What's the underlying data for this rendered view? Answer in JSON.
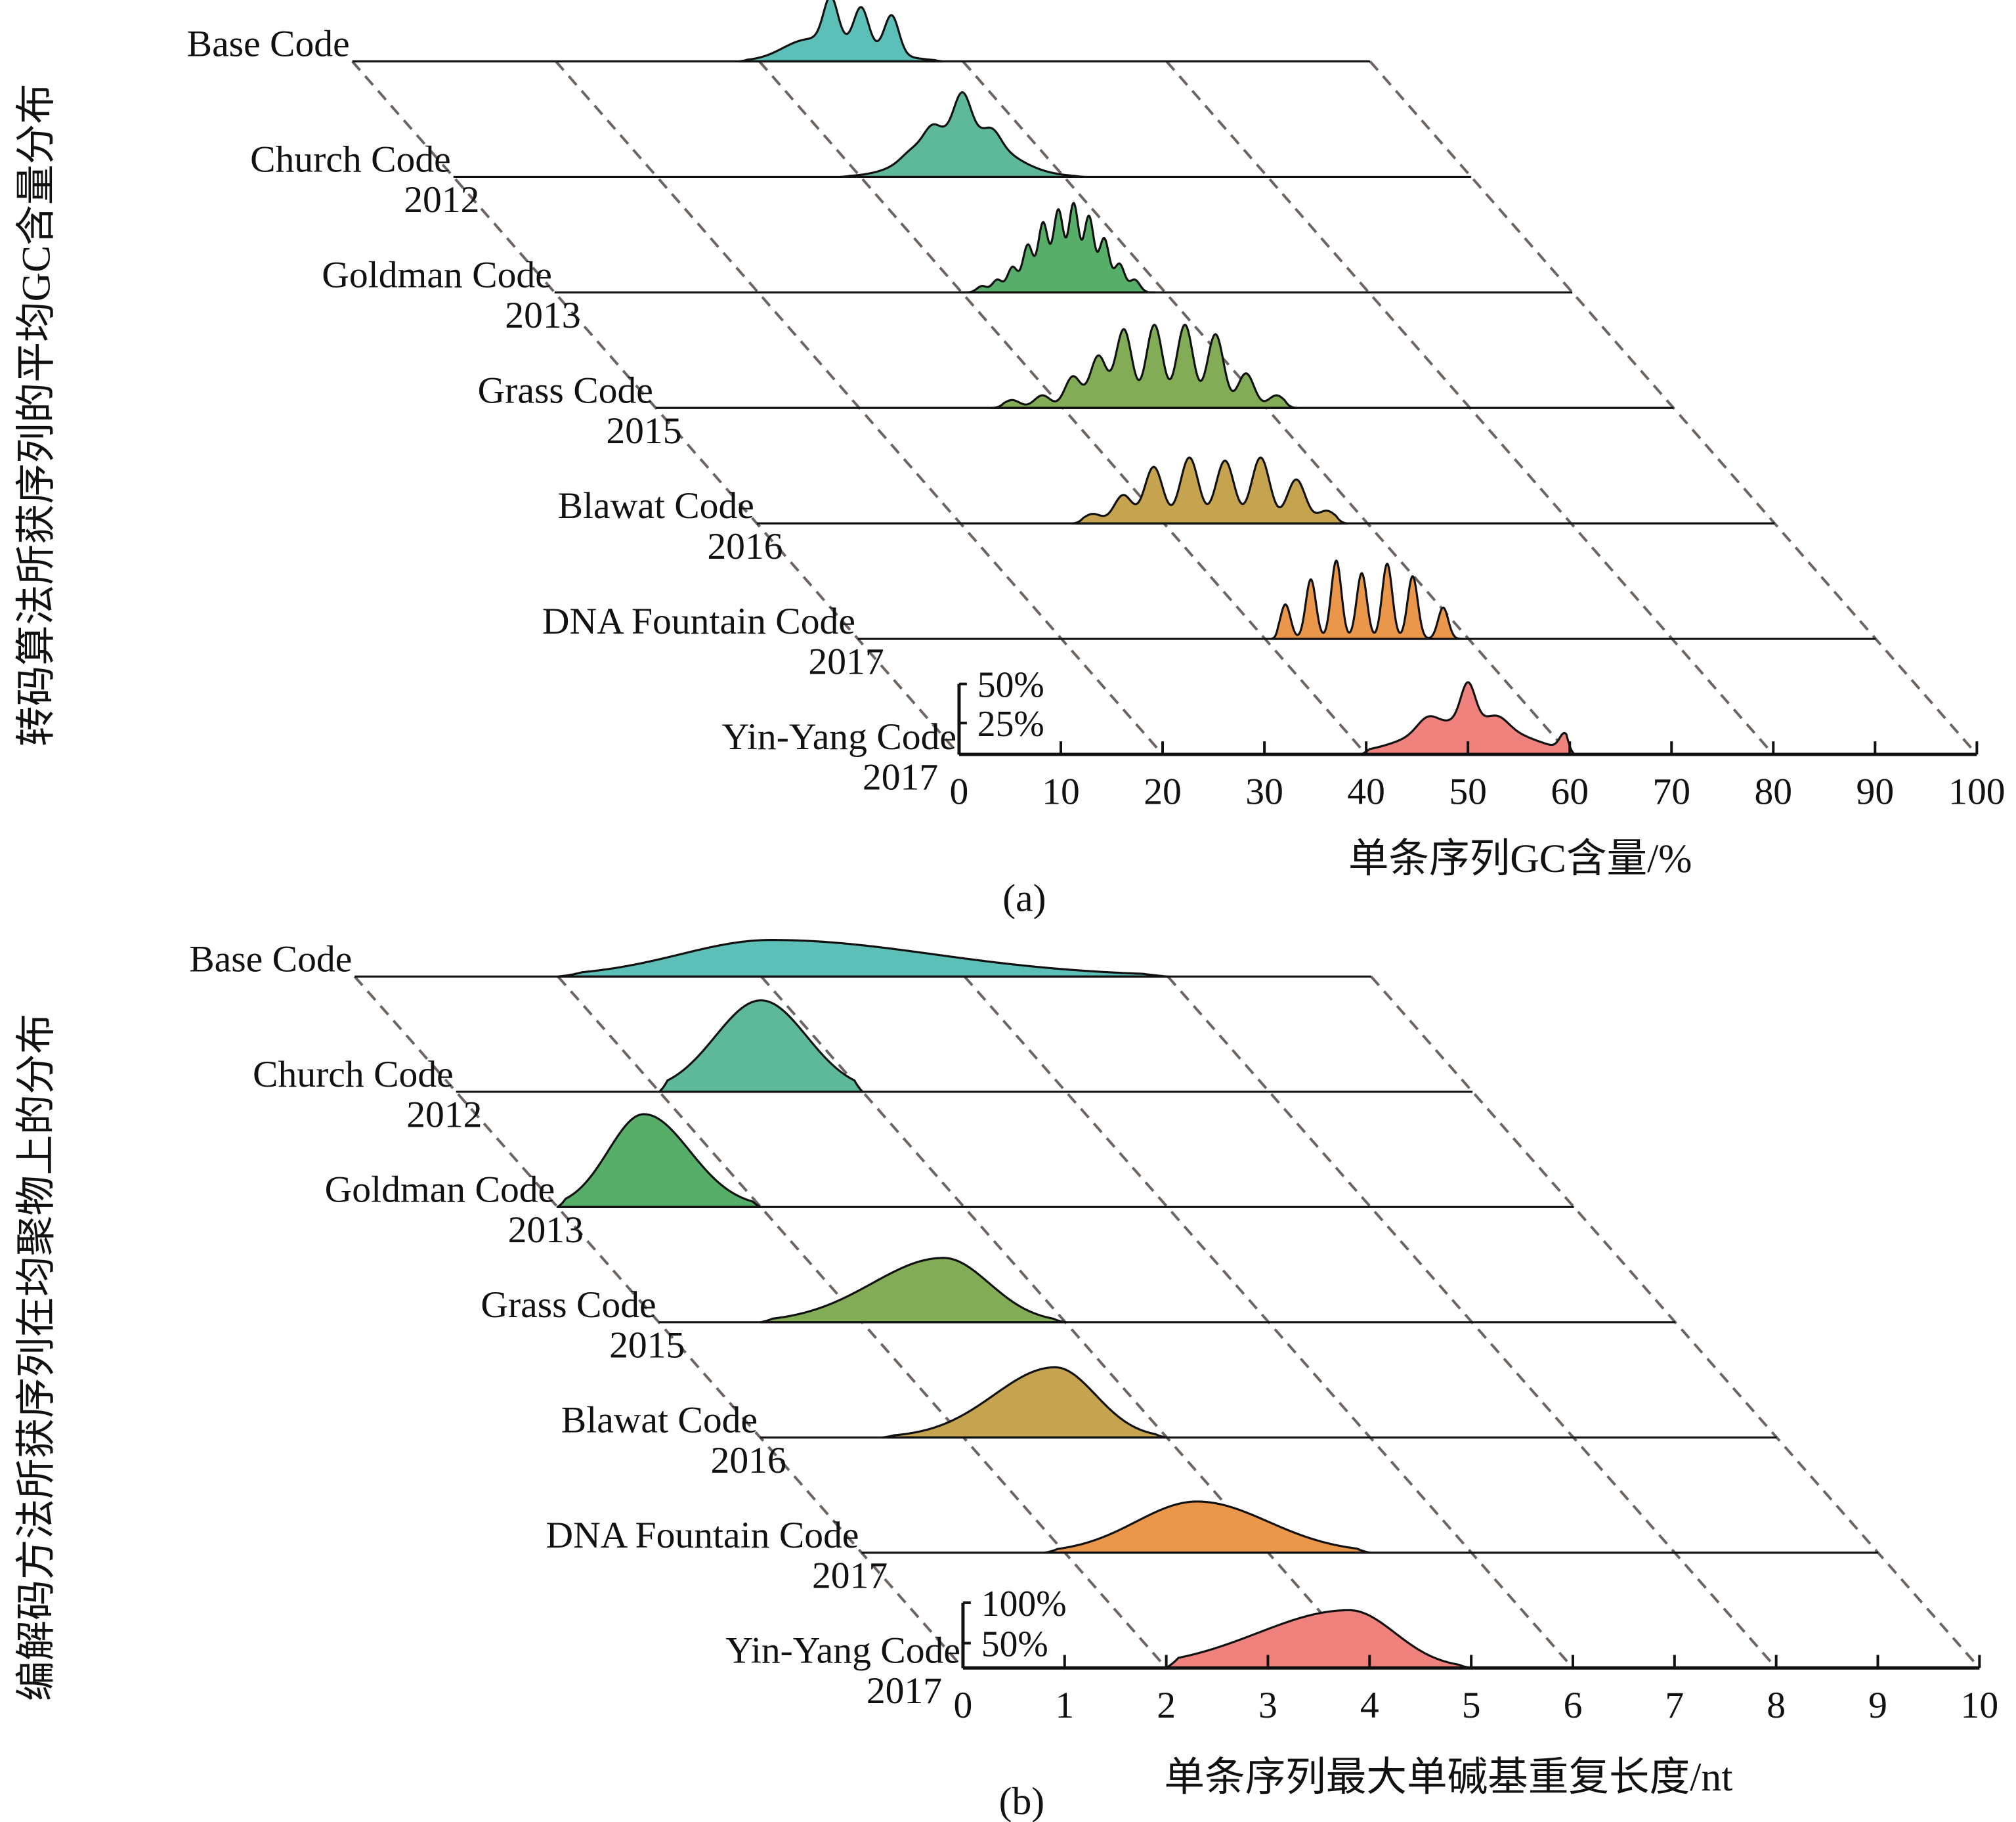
{
  "chart_data": [
    {
      "type": "area",
      "subtype": "ridgeline",
      "panel_label": "(a)",
      "ylabel": "转码算法所获序列的平均GC含量分布",
      "xlabel": "单条序列GC含量/%",
      "xlim": [
        0,
        100
      ],
      "x_ticks": [
        "0",
        "10",
        "20",
        "30",
        "40",
        "50",
        "60",
        "70",
        "80",
        "90",
        "100"
      ],
      "scale_labels": [
        "50%",
        "25%"
      ],
      "scale_values": [
        50,
        25
      ],
      "series": [
        {
          "name": "Base Code",
          "year": "",
          "color": "#5cc0b8",
          "range": [
            38,
            58
          ],
          "peaks": {
            "c": [
              48,
              47,
              50,
              53,
              44
            ],
            "h": [
              12,
              28,
              24,
              24,
              6
            ],
            "w": [
              4,
              0.7,
              0.7,
              0.7,
              2
            ]
          }
        },
        {
          "name": "Church Code",
          "year": "2012",
          "color": "#5db99a",
          "range": [
            38,
            62
          ],
          "peaks": {
            "c": [
              50,
              50,
              47,
              53,
              45
            ],
            "h": [
              30,
              24,
              10,
              8,
              4
            ],
            "w": [
              4,
              0.8,
              0.8,
              0.8,
              1
            ]
          }
        },
        {
          "name": "Goldman Code",
          "year": "2013",
          "color": "#56ae68",
          "range": [
            40,
            59
          ],
          "peaks": {
            "c": [
              42,
              43.5,
              45,
              46.5,
              48,
              49.5,
              51,
              52.5,
              54,
              55.5,
              57
            ],
            "h": [
              4,
              8,
              16,
              30,
              44,
              52,
              56,
              48,
              34,
              18,
              8
            ],
            "w": [
              0.5,
              0.5,
              0.5,
              0.5,
              0.5,
              0.5,
              0.5,
              0.5,
              0.5,
              0.5,
              0.5
            ]
          }
        },
        {
          "name": "Grass Code",
          "year": "2015",
          "color": "#82ad56",
          "range": [
            33,
            63
          ],
          "peaks": {
            "c": [
              35,
              38,
              41,
              43.5,
              46,
              49,
              52,
              55,
              58,
              61
            ],
            "h": [
              5,
              8,
              20,
              33,
              50,
              53,
              53,
              47,
              22,
              8
            ],
            "w": [
              0.8,
              0.8,
              0.8,
              0.8,
              0.8,
              0.8,
              0.8,
              0.8,
              0.8,
              0.8
            ]
          }
        },
        {
          "name": "Blawat Code",
          "year": "2016",
          "color": "#c6a34f",
          "range": [
            31,
            58
          ],
          "peaks": {
            "c": [
              33,
              36,
              39,
              42.5,
              46,
              49.5,
              53,
              56
            ],
            "h": [
              6,
              18,
              36,
              42,
              40,
              42,
              28,
              8
            ],
            "w": [
              0.9,
              0.9,
              0.9,
              0.9,
              0.9,
              0.9,
              0.9,
              0.9
            ]
          }
        },
        {
          "name": "DNA Fountain Code",
          "year": "2017",
          "color": "#ea974b",
          "range": [
            40.5,
            60
          ],
          "peaks": {
            "c": [
              42,
              44.5,
              47,
              49.5,
              52,
              54.5,
              57.5
            ],
            "h": [
              22,
              38,
              50,
              42,
              48,
              40,
              20
            ],
            "w": [
              0.5,
              0.5,
              0.5,
              0.5,
              0.5,
              0.5,
              0.5
            ]
          }
        },
        {
          "name": "Yin-Yang Code",
          "year": "2017",
          "color": "#ef827c",
          "range": [
            39.5,
            60.5
          ],
          "peaks": {
            "c": [
              50,
              50,
              46,
              53,
              59.5
            ],
            "h": [
              22,
              24,
              8,
              6,
              10
            ],
            "w": [
              5,
              0.7,
              1,
              1,
              0.5
            ]
          }
        }
      ]
    },
    {
      "type": "area",
      "subtype": "ridgeline",
      "panel_label": "(b)",
      "ylabel": "编解码方法所获序列在均聚物上的分布",
      "xlabel": "单条序列最大单碱基重复长度/nt",
      "xlim": [
        0,
        10
      ],
      "x_ticks": [
        "0",
        "1",
        "2",
        "3",
        "4",
        "5",
        "6",
        "7",
        "8",
        "9",
        "10"
      ],
      "scale_labels": [
        "100%",
        "50%"
      ],
      "scale_values": [
        100,
        50
      ],
      "series": [
        {
          "name": "Base Code",
          "year": "",
          "color": "#5cc0b8",
          "range": [
            2,
            8
          ],
          "peaks": {
            "c": [
              4.1
            ],
            "h": [
              50
            ],
            "wl": [
              0.9
            ],
            "wr": [
              1.6
            ]
          }
        },
        {
          "name": "Church Code",
          "year": "2012",
          "color": "#5db99a",
          "range": [
            2,
            4
          ],
          "peaks": {
            "c": [
              3.0
            ],
            "h": [
              125
            ],
            "wl": [
              0.45
            ],
            "wr": [
              0.45
            ]
          }
        },
        {
          "name": "Goldman Code",
          "year": "2013",
          "color": "#56ae68",
          "range": [
            0,
            2
          ],
          "peaks": {
            "c": [
              0.85
            ],
            "h": [
              127
            ],
            "wl": [
              0.35
            ],
            "wr": [
              0.45
            ]
          }
        },
        {
          "name": "Grass Code",
          "year": "2015",
          "color": "#82ad56",
          "range": [
            1,
            4
          ],
          "peaks": {
            "c": [
              2.8
            ],
            "h": [
              88
            ],
            "wl": [
              0.7
            ],
            "wr": [
              0.45
            ]
          }
        },
        {
          "name": "Blawat Code",
          "year": "2016",
          "color": "#c6a34f",
          "range": [
            1.2,
            4
          ],
          "peaks": {
            "c": [
              2.9
            ],
            "h": [
              96
            ],
            "wl": [
              0.6
            ],
            "wr": [
              0.4
            ]
          }
        },
        {
          "name": "DNA Fountain Code",
          "year": "2017",
          "color": "#ea974b",
          "range": [
            1.8,
            5
          ],
          "peaks": {
            "c": [
              3.3
            ],
            "h": [
              70
            ],
            "wl": [
              0.6
            ],
            "wr": [
              0.7
            ]
          }
        },
        {
          "name": "Yin-Yang Code",
          "year": "2017",
          "color": "#ef827c",
          "range": [
            2,
            5
          ],
          "peaks": {
            "c": [
              3.8
            ],
            "h": [
              79
            ],
            "wl": [
              0.9
            ],
            "wr": [
              0.45
            ]
          }
        }
      ]
    }
  ]
}
